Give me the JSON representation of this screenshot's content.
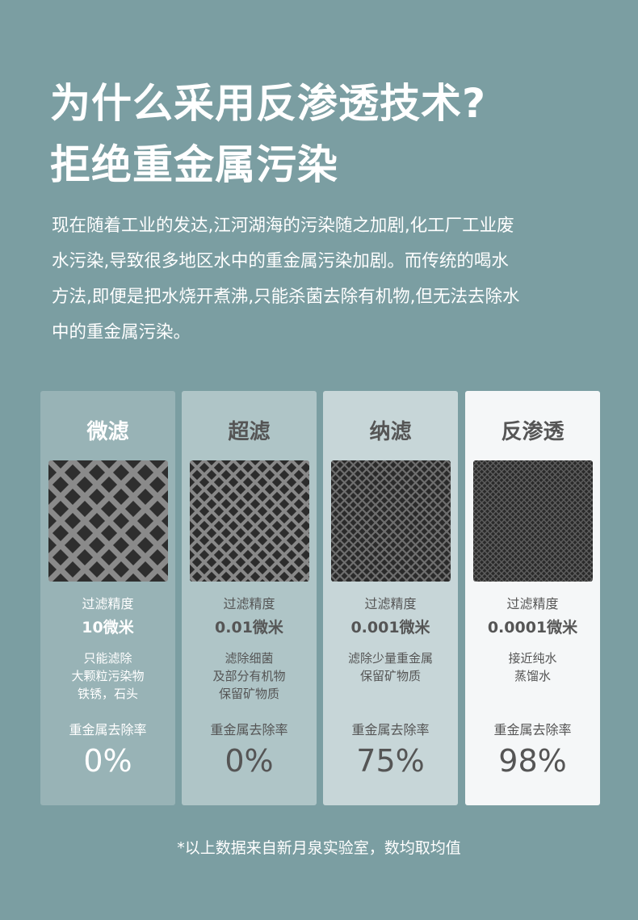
{
  "header": {
    "title_lines": [
      "为什么采用反渗透技术?",
      "拒绝重金属污染"
    ]
  },
  "intro": {
    "lines": [
      "现在随着工业的发达,江河湖海的污染随之加剧,化工厂工业废",
      "水污染,导致很多地区水中的重金属污染加剧。而传统的喝水",
      "方法,即便是把水烧开煮沸,只能杀菌去除有机物,但无法去除水",
      "中的重金属污染。"
    ]
  },
  "cards": [
    {
      "name": "微滤",
      "precision_label": "过滤精度",
      "precision": "10微米",
      "description": [
        "只能滤除",
        "大颗粒污染物",
        "铁锈，石头"
      ],
      "removal_label": "重金属去除率",
      "removal": "0%"
    },
    {
      "name": "超滤",
      "precision_label": "过滤精度",
      "precision": "0.01微米",
      "description": [
        "滤除细菌",
        "及部分有机物",
        "保留矿物质"
      ],
      "removal_label": "重金属去除率",
      "removal": "0%"
    },
    {
      "name": "纳滤",
      "precision_label": "过滤精度",
      "precision": "0.001微米",
      "description": [
        "滤除少量重金属",
        "保留矿物质"
      ],
      "removal_label": "重金属去除率",
      "removal": "75%"
    },
    {
      "name": "反渗透",
      "precision_label": "过滤精度",
      "precision": "0.0001微米",
      "description": [
        "接近纯水",
        "蒸馏水"
      ],
      "removal_label": "重金属去除率",
      "removal": "98%"
    }
  ],
  "footnote": "*以上数据来自新月泉实验室，数均取均值"
}
